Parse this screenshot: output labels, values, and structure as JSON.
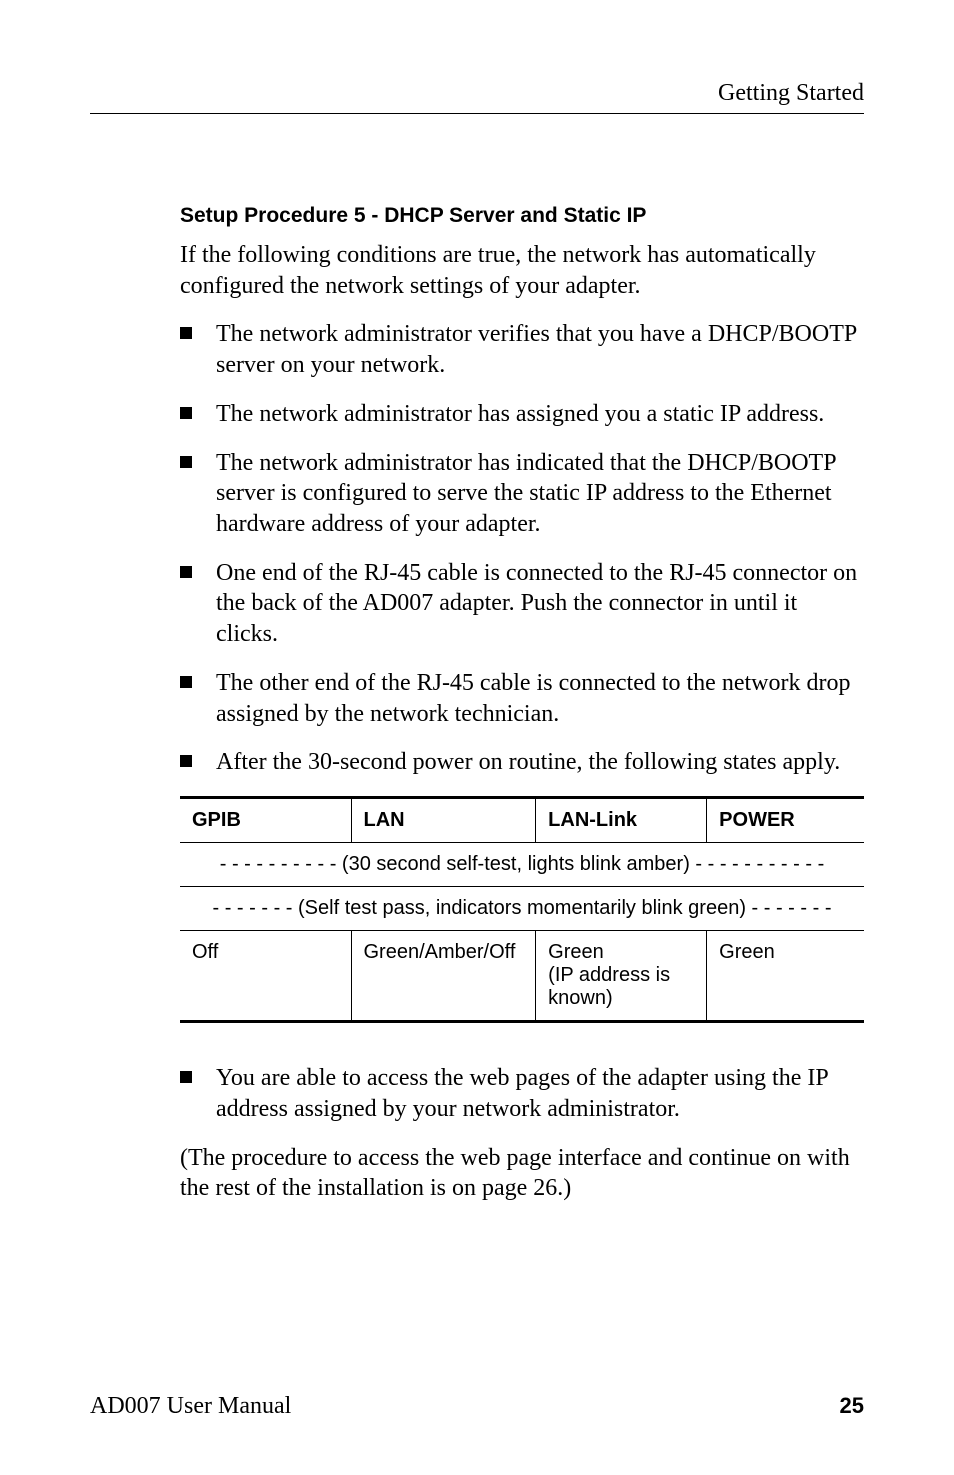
{
  "header": {
    "chapter": "Getting Started"
  },
  "section": {
    "heading": "Setup Procedure 5 -  DHCP Server and Static IP"
  },
  "intro": "If the following conditions are true, the network has automatically configured the network settings of your adapter.",
  "bullets_top": [
    "The network administrator verifies that you have a DHCP/BOOTP server on your network.",
    "The network administrator has assigned you a static IP address.",
    "The network administrator has indicated that the DHCP/BOOTP server is configured to serve the static IP address to the Ethernet hardware address of your adapter.",
    "One end of the RJ-45 cable is connected to the RJ-45 connector on the back of the AD007 adapter. Push the connector in until it clicks.",
    "The other end of the RJ-45 cable is connected to the network drop assigned by the network technician.",
    "After the 30-second power on routine, the following states apply."
  ],
  "table": {
    "columns": [
      "GPIB",
      "LAN",
      "LAN-Link",
      "POWER"
    ],
    "label_row_1": "- - - - - - - - - - (30 second self-test, lights blink amber) - - - - - - - - - - -",
    "label_row_2": "- - - - - - - (Self test pass, indicators momentarily blink green) - - - - - - -",
    "data_row": {
      "gpib": "Off",
      "lan": "Green/Amber/Off",
      "lan_link": "Green\n(IP address is known)",
      "power": "Green"
    },
    "header_fontsize": 21,
    "cell_fontsize": 20,
    "border_color": "#000000",
    "background_color": "#ffffff",
    "column_widths_pct": [
      25,
      27,
      25,
      23
    ]
  },
  "bullets_bottom": [
    "You are able to access the web pages of the adapter using the IP address assigned by your network administrator."
  ],
  "closing": "(The procedure to access the web page interface and continue on with the rest of the installation is on page 26.)",
  "footer": {
    "manual": "AD007 User Manual",
    "page": "25"
  }
}
